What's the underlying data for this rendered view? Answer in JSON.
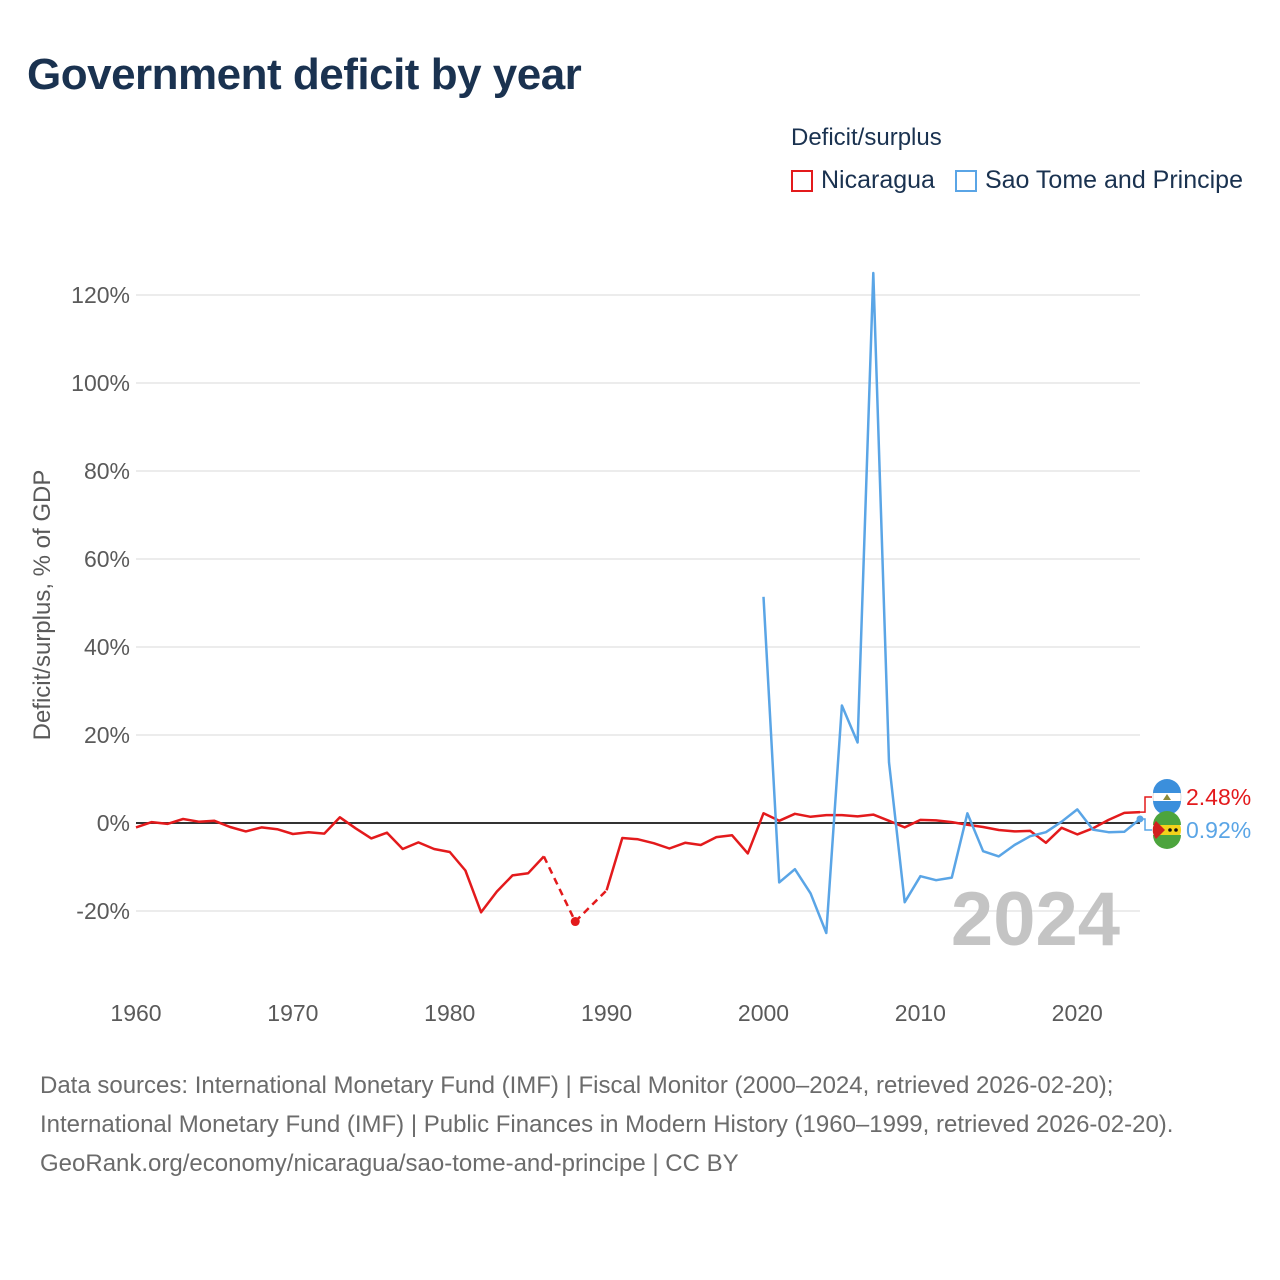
{
  "page": {
    "title": "Government deficit by year",
    "footer_line1": "Data sources: International Monetary Fund (IMF) | Fiscal Monitor (2000–2024, retrieved 2026-02-20); International Monetary Fund (IMF) | Public Finances in Modern History (1960–1999, retrieved 2026-02-20).",
    "footer_line2": "GeoRank.org/economy/nicaragua/sao-tome-and-principe | CC BY"
  },
  "legend": {
    "title": "Deficit/surplus",
    "items": [
      {
        "label": "Nicaragua",
        "color": "#e31a1c"
      },
      {
        "label": "Sao Tome and Principe",
        "color": "#5aa5e6"
      }
    ]
  },
  "chart_data": {
    "type": "line",
    "title": "Government deficit by year",
    "xlabel": "",
    "ylabel": "Deficit/surplus, % of GDP",
    "xlim": [
      1960,
      2024
    ],
    "ylim": [
      -30,
      125
    ],
    "x_ticks": [
      1960,
      1970,
      1980,
      1990,
      2000,
      2010,
      2020
    ],
    "x_tick_labels": [
      "1960",
      "1970",
      "1980",
      "1990",
      "2000",
      "2010",
      "2020"
    ],
    "y_ticks": [
      -20,
      0,
      20,
      40,
      60,
      80,
      100,
      120
    ],
    "y_tick_labels": [
      "-20%",
      "0%",
      "20%",
      "40%",
      "60%",
      "80%",
      "100%",
      "120%"
    ],
    "grid": true,
    "zero_line": true,
    "year_label": "2024",
    "series": [
      {
        "name": "Nicaragua",
        "color": "#e31a1c",
        "end_label": "2.48%",
        "points": [
          [
            1960,
            -1.0
          ],
          [
            1961,
            0.2
          ],
          [
            1962,
            -0.2
          ],
          [
            1963,
            0.9
          ],
          [
            1964,
            0.3
          ],
          [
            1965,
            0.5
          ],
          [
            1966,
            -0.9
          ],
          [
            1967,
            -1.9
          ],
          [
            1968,
            -1.0
          ],
          [
            1969,
            -1.4
          ],
          [
            1970,
            -2.5
          ],
          [
            1971,
            -2.1
          ],
          [
            1972,
            -2.4
          ],
          [
            1973,
            1.3
          ],
          [
            1974,
            -1.2
          ],
          [
            1975,
            -3.5
          ],
          [
            1976,
            -2.2
          ],
          [
            1977,
            -5.9
          ],
          [
            1978,
            -4.4
          ],
          [
            1979,
            -5.9
          ],
          [
            1980,
            -6.6
          ],
          [
            1981,
            -10.8
          ],
          [
            1982,
            -20.3
          ],
          [
            1983,
            -15.6
          ],
          [
            1984,
            -11.9
          ],
          [
            1985,
            -11.4
          ],
          [
            1986,
            -7.6
          ],
          [
            1988,
            -22.4
          ],
          [
            1990,
            -15.3
          ],
          [
            1991,
            -3.4
          ],
          [
            1992,
            -3.7
          ],
          [
            1993,
            -4.6
          ],
          [
            1994,
            -5.8
          ],
          [
            1995,
            -4.5
          ],
          [
            1996,
            -5.0
          ],
          [
            1997,
            -3.2
          ],
          [
            1998,
            -2.8
          ],
          [
            1999,
            -6.9
          ],
          [
            2000,
            2.2
          ],
          [
            2001,
            0.5
          ],
          [
            2002,
            2.1
          ],
          [
            2003,
            1.4
          ],
          [
            2004,
            1.8
          ],
          [
            2005,
            1.8
          ],
          [
            2006,
            1.5
          ],
          [
            2007,
            1.9
          ],
          [
            2008,
            0.5
          ],
          [
            2009,
            -1.0
          ],
          [
            2010,
            0.7
          ],
          [
            2011,
            0.6
          ],
          [
            2012,
            0.2
          ],
          [
            2013,
            -0.4
          ],
          [
            2014,
            -0.9
          ],
          [
            2015,
            -1.6
          ],
          [
            2016,
            -1.9
          ],
          [
            2017,
            -1.8
          ],
          [
            2018,
            -4.5
          ],
          [
            2019,
            -1.1
          ],
          [
            2020,
            -2.6
          ],
          [
            2021,
            -1.2
          ],
          [
            2022,
            0.7
          ],
          [
            2023,
            2.3
          ],
          [
            2024,
            2.48
          ]
        ],
        "dashed_segments": [
          [
            1986,
            1988
          ],
          [
            1988,
            1990
          ]
        ],
        "markers": [
          [
            1988,
            -22.4
          ]
        ]
      },
      {
        "name": "Sao Tome and Principe",
        "color": "#5aa5e6",
        "end_label": "0.92%",
        "points": [
          [
            2000,
            51.4
          ],
          [
            2001,
            -13.5
          ],
          [
            2002,
            -10.5
          ],
          [
            2003,
            -16.0
          ],
          [
            2004,
            -25.0
          ],
          [
            2005,
            26.7
          ],
          [
            2006,
            18.3
          ],
          [
            2007,
            125.0
          ],
          [
            2008,
            13.8
          ],
          [
            2009,
            -18.0
          ],
          [
            2010,
            -12.1
          ],
          [
            2011,
            -13.0
          ],
          [
            2012,
            -12.4
          ],
          [
            2013,
            2.2
          ],
          [
            2014,
            -6.4
          ],
          [
            2015,
            -7.6
          ],
          [
            2016,
            -5.0
          ],
          [
            2017,
            -3.0
          ],
          [
            2018,
            -2.1
          ],
          [
            2019,
            0.3
          ],
          [
            2020,
            3.1
          ],
          [
            2021,
            -1.5
          ],
          [
            2022,
            -2.1
          ],
          [
            2023,
            -2.0
          ],
          [
            2024,
            0.92
          ]
        ],
        "dashed_segments": [],
        "markers": []
      }
    ]
  }
}
